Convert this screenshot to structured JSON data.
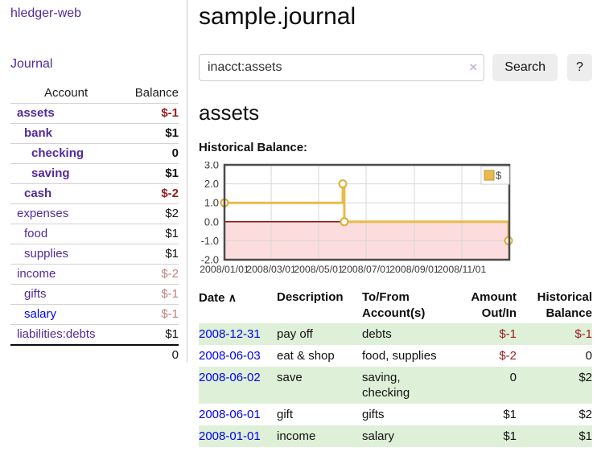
{
  "app": {
    "brand": "hledger-web",
    "nav_journal": "Journal"
  },
  "sidebar": {
    "account_header": "Account",
    "balance_header": "Balance",
    "accounts": [
      {
        "name": "assets",
        "indent": 1,
        "bold": true,
        "balance": "$-1",
        "balance_style": "neg-strong",
        "link_style": "purple"
      },
      {
        "name": "bank",
        "indent": 2,
        "bold": true,
        "balance": "$1",
        "balance_style": "plain",
        "link_style": "purple"
      },
      {
        "name": "checking",
        "indent": 3,
        "bold": true,
        "balance": "0",
        "balance_style": "plain",
        "link_style": "purple"
      },
      {
        "name": "saving",
        "indent": 3,
        "bold": true,
        "balance": "$1",
        "balance_style": "plain",
        "link_style": "purple"
      },
      {
        "name": "cash",
        "indent": 2,
        "bold": true,
        "balance": "$-2",
        "balance_style": "neg-strong",
        "link_style": "purple"
      },
      {
        "name": "expenses",
        "indent": 1,
        "bold": false,
        "balance": "$2",
        "balance_style": "plain",
        "link_style": "purple"
      },
      {
        "name": "food",
        "indent": 2,
        "bold": false,
        "balance": "$1",
        "balance_style": "plain",
        "link_style": "purple"
      },
      {
        "name": "supplies",
        "indent": 2,
        "bold": false,
        "balance": "$1",
        "balance_style": "plain",
        "link_style": "purple"
      },
      {
        "name": "income",
        "indent": 1,
        "bold": false,
        "balance": "$-2",
        "balance_style": "neg-soft",
        "link_style": "purple"
      },
      {
        "name": "gifts",
        "indent": 2,
        "bold": false,
        "balance": "$-1",
        "balance_style": "neg-soft",
        "link_style": "purple"
      },
      {
        "name": "salary",
        "indent": 2,
        "bold": false,
        "balance": "$-1",
        "balance_style": "neg-soft",
        "link_style": "blue"
      },
      {
        "name": "liabilities:debts",
        "indent": 1,
        "bold": false,
        "balance": "$1",
        "balance_style": "plain",
        "link_style": "purple"
      }
    ],
    "total": "0"
  },
  "main": {
    "title": "sample.journal",
    "search": {
      "value": "inacct:assets",
      "clear_icon": "×",
      "search_label": "Search",
      "help_label": "?"
    },
    "account_heading": "assets",
    "chart_title": "Historical Balance:"
  },
  "chart_data": {
    "type": "line",
    "title": "Historical Balance:",
    "step": true,
    "ylim": [
      -2,
      3
    ],
    "x_span_days": 366,
    "x_ticks": [
      "2008/01/01",
      "2008/03/01",
      "2008/05/01",
      "2008/07/01",
      "2008/09/01",
      "2008/11/01"
    ],
    "x_tick_days": [
      0,
      60,
      121,
      182,
      244,
      305
    ],
    "y_ticks": [
      "3.0",
      "2.0",
      "1.0",
      "0.0",
      "-1.0",
      "-2.0"
    ],
    "grid": true,
    "legend": {
      "position": "top-right",
      "entries": [
        {
          "label": "$",
          "color": "#e8bb4a",
          "border": "#bb952f"
        }
      ]
    },
    "series": [
      {
        "name": "$",
        "color": "#e8bb4a",
        "marker_stroke": "#ddad36",
        "marker_fill": "#fffef6",
        "points": [
          {
            "date": "2008-01-01",
            "day": 0,
            "value": 1
          },
          {
            "date": "2008-06-01",
            "day": 152,
            "value": 2
          },
          {
            "date": "2008-06-03",
            "day": 154,
            "value": 0
          },
          {
            "date": "2008-12-31",
            "day": 365,
            "value": -1
          }
        ]
      }
    ],
    "colors": {
      "border": "#4c4c4c",
      "grid": "#d8d8d8",
      "zero_line": "#8e1212",
      "negative_region": "#fcdcdc",
      "tick_label": "#3a3a3a"
    }
  },
  "register_table": {
    "headers": {
      "date": "Date",
      "sort_icon": "∧",
      "description": "Description",
      "accounts": "To/From Account(s)",
      "amount": "Amount Out/In",
      "balance": "Historical Balance"
    },
    "rows": [
      {
        "date": "2008-12-31",
        "description": "pay off",
        "accounts": "debts",
        "amount": "$-1",
        "amount_negative": true,
        "balance": "$-1",
        "balance_negative": true
      },
      {
        "date": "2008-06-03",
        "description": "eat & shop",
        "accounts": "food, supplies",
        "amount": "$-2",
        "amount_negative": true,
        "balance": "0",
        "balance_negative": false
      },
      {
        "date": "2008-06-02",
        "description": "save",
        "accounts": "saving, checking",
        "amount": "0",
        "amount_negative": false,
        "balance": "$2",
        "balance_negative": false
      },
      {
        "date": "2008-06-01",
        "description": "gift",
        "accounts": "gifts",
        "amount": "$1",
        "amount_negative": false,
        "balance": "$2",
        "balance_negative": false
      },
      {
        "date": "2008-01-01",
        "description": "income",
        "accounts": "salary",
        "amount": "$1",
        "amount_negative": false,
        "balance": "$1",
        "balance_negative": false
      }
    ]
  }
}
